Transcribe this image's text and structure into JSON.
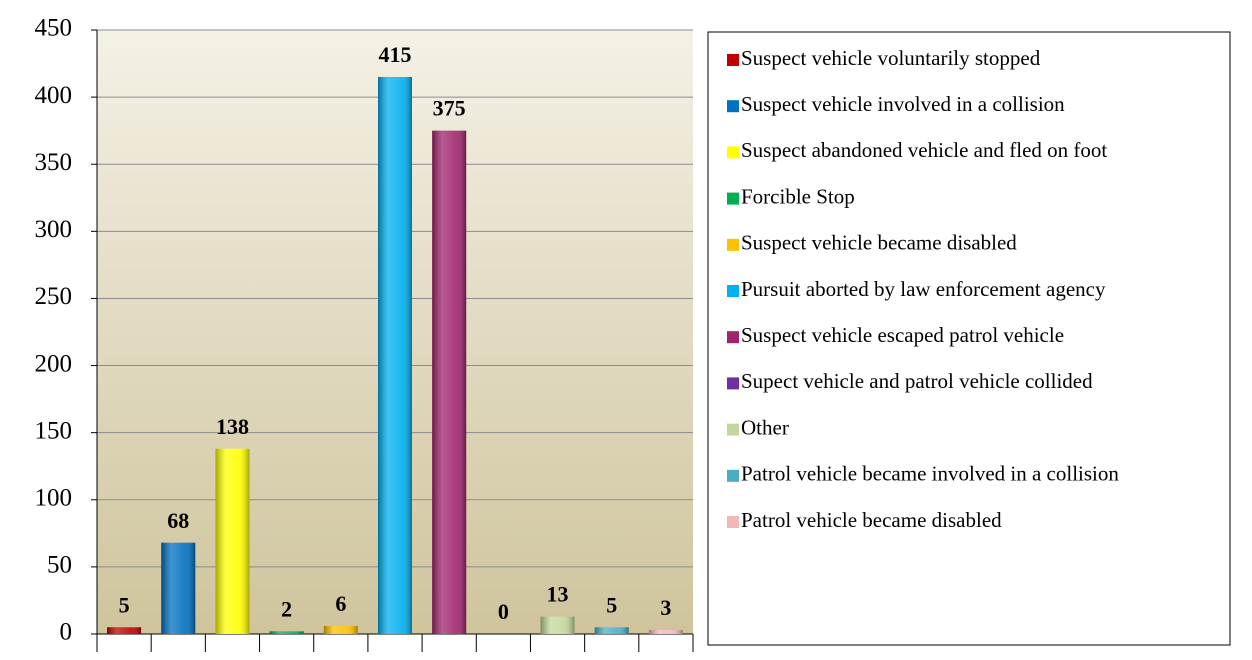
{
  "chart_data": {
    "type": "bar",
    "categories": [
      "Suspect vehicle voluntarily stopped",
      "Suspect vehicle involved in a collision",
      "Suspect abandoned vehicle and fled on foot",
      "Forcible Stop",
      "Suspect vehicle became disabled",
      "Pursuit aborted by law enforcement agency",
      "Suspect vehicle escaped patrol vehicle",
      "Supect vehicle and patrol vehicle collided",
      "Other",
      "Patrol vehicle became involved in a collision",
      "Patrol vehicle became disabled"
    ],
    "values": [
      5,
      68,
      138,
      2,
      6,
      415,
      375,
      0,
      13,
      5,
      3
    ],
    "colors": [
      "#c00000",
      "#0070c0",
      "#ffff00",
      "#00b050",
      "#ffc000",
      "#00b0f0",
      "#a0256e",
      "#7030a0",
      "#c4d79b",
      "#4bacc6",
      "#f2b8b8"
    ],
    "ylim": [
      0,
      450
    ],
    "yticks": [
      0,
      50,
      100,
      150,
      200,
      250,
      300,
      350,
      400,
      450
    ],
    "grid": true,
    "legend": "right"
  }
}
